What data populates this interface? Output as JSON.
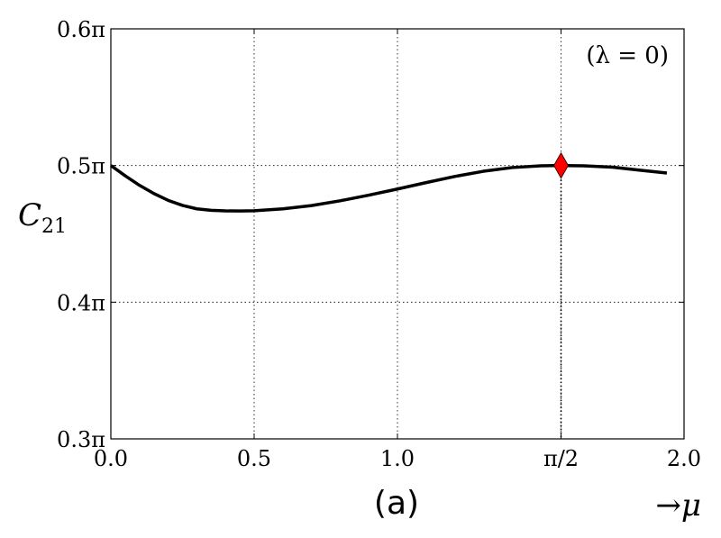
{
  "chart_data": {
    "type": "line",
    "title": "",
    "xlabel": "→μ",
    "ylabel": "C",
    "ylabel_sub": "21",
    "panel_label": "(a)",
    "annotation": "(λ = 0)",
    "xlim": [
      0.0,
      2.0
    ],
    "ylim": [
      0.3,
      0.6
    ],
    "x_ticks": [
      {
        "value": 0.0,
        "label": "0.0"
      },
      {
        "value": 0.5,
        "label": "0.5"
      },
      {
        "value": 1.0,
        "label": "1.0"
      },
      {
        "value": 1.5708,
        "label": "π/2"
      },
      {
        "value": 2.0,
        "label": "2.0"
      }
    ],
    "y_ticks": [
      {
        "value": 0.3,
        "label": "0.3π"
      },
      {
        "value": 0.4,
        "label": "0.4π"
      },
      {
        "value": 0.5,
        "label": "0.5π"
      },
      {
        "value": 0.6,
        "label": "0.6π"
      }
    ],
    "grid": true,
    "series": [
      {
        "color": "#000000",
        "points": [
          [
            0.0,
            0.5
          ],
          [
            0.05,
            0.4925
          ],
          [
            0.1,
            0.4855
          ],
          [
            0.15,
            0.4795
          ],
          [
            0.2,
            0.4745
          ],
          [
            0.25,
            0.4708
          ],
          [
            0.3,
            0.4683
          ],
          [
            0.35,
            0.4672
          ],
          [
            0.4,
            0.4668
          ],
          [
            0.45,
            0.4667
          ],
          [
            0.5,
            0.4669
          ],
          [
            0.6,
            0.4683
          ],
          [
            0.7,
            0.4707
          ],
          [
            0.8,
            0.4742
          ],
          [
            0.9,
            0.4783
          ],
          [
            1.0,
            0.4828
          ],
          [
            1.1,
            0.4875
          ],
          [
            1.2,
            0.492
          ],
          [
            1.3,
            0.4958
          ],
          [
            1.4,
            0.4985
          ],
          [
            1.5,
            0.4998
          ],
          [
            1.5708,
            0.5
          ],
          [
            1.65,
            0.4998
          ],
          [
            1.75,
            0.4988
          ],
          [
            1.85,
            0.4965
          ],
          [
            1.94,
            0.4945
          ]
        ]
      }
    ],
    "marker": {
      "x": 1.5708,
      "y": 0.5,
      "shape": "diamond",
      "color": "#ff0000"
    }
  }
}
